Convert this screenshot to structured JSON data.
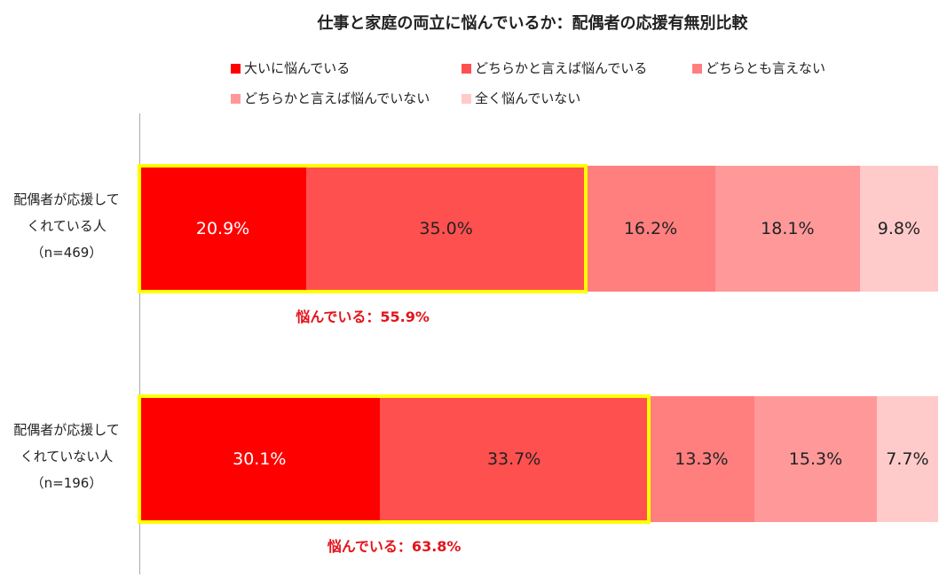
{
  "chart_data": {
    "type": "bar",
    "orientation": "horizontal",
    "stacked": true,
    "percent": true,
    "title": "仕事と家庭の両立に悩んでいるか：配偶者の応援有無別比較",
    "legend": [
      {
        "name": "大いに悩んでいる",
        "color": "#ff0000"
      },
      {
        "name": "どちらかと言えば悩んでいる",
        "color": "#ff5050"
      },
      {
        "name": "どちらとも言えない",
        "color": "#ff7f7f"
      },
      {
        "name": "どちらかと言えば悩んでいない",
        "color": "#ff9999"
      },
      {
        "name": "全く悩んでいない",
        "color": "#ffcaca"
      }
    ],
    "categories": [
      {
        "label": [
          "配偶者が応援して",
          "くれている人",
          "（n=469）"
        ],
        "values": [
          20.9,
          35.0,
          16.2,
          18.1,
          9.8
        ],
        "value_labels": [
          "20.9%",
          "35.0%",
          "16.2%",
          "18.1%",
          "9.8%"
        ],
        "summary": "悩んでいる：55.9%"
      },
      {
        "label": [
          "配偶者が応援して",
          "くれていない人",
          "（n=196）"
        ],
        "values": [
          30.1,
          33.7,
          13.3,
          15.3,
          7.7
        ],
        "value_labels": [
          "30.1%",
          "33.7%",
          "13.3%",
          "15.3%",
          "7.7%"
        ],
        "summary": "悩んでいる：63.8%"
      }
    ],
    "text_colors": [
      "#ffffff",
      "#222222",
      "#222222",
      "#222222",
      "#222222"
    ],
    "highlight_color": "#ffff00",
    "summary_color": "#e3141b",
    "xlim": [
      0,
      100
    ]
  }
}
